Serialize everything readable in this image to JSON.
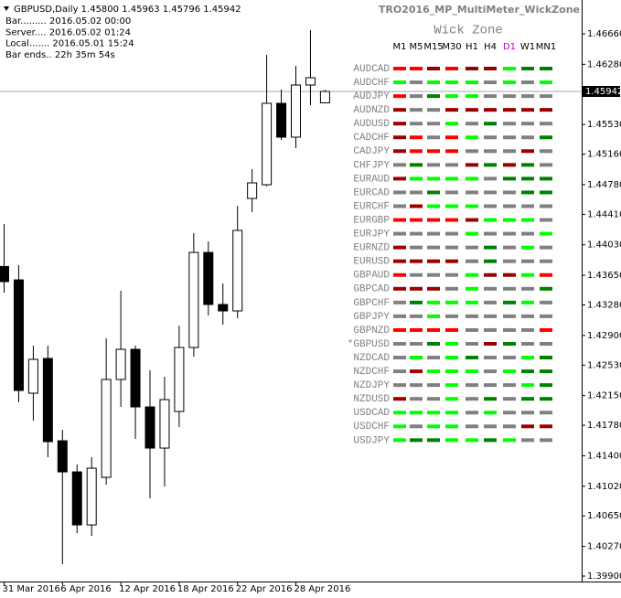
{
  "chart_data": {
    "type": "candlestick",
    "title": "GBPUSD,Daily  1.45800 1.45963 1.45796 1.45942",
    "categories": [
      "31 Mar 2016",
      null,
      null,
      null,
      "6 Apr 2016",
      null,
      null,
      null,
      "12 Apr 2016",
      null,
      null,
      null,
      "18 Apr 2016",
      null,
      null,
      null,
      "22 Apr 2016",
      null,
      null,
      null,
      "28 Apr 2016",
      null,
      null
    ],
    "open": [
      1.4376,
      1.43593,
      1.4218,
      1.42613,
      1.41587,
      1.41199,
      1.40538,
      1.41131,
      1.42351,
      1.42727,
      1.42009,
      1.41496,
      1.41952,
      1.4275,
      1.43935,
      1.43286,
      1.43206,
      1.44608,
      1.44779,
      1.45794,
      1.45372,
      1.46022,
      1.458
    ],
    "high": [
      1.44289,
      1.43776,
      1.42773,
      1.42773,
      1.41724,
      1.41291,
      1.41382,
      1.42864,
      1.43457,
      1.42773,
      1.42465,
      1.42385,
      1.43023,
      1.44175,
      1.44072,
      1.43548,
      1.44517,
      1.44973,
      1.46398,
      1.45965,
      1.46261,
      1.46706,
      1.45963
    ],
    "low": [
      1.43434,
      1.42066,
      1.41838,
      1.41382,
      1.40048,
      1.40436,
      1.40401,
      1.4104,
      1.42009,
      1.4161,
      1.40869,
      1.41017,
      1.41758,
      1.42636,
      1.43149,
      1.43035,
      1.43115,
      1.44437,
      1.4476,
      1.45338,
      1.45235,
      1.45771,
      1.45796
    ],
    "close": [
      1.43571,
      1.42214,
      1.42602,
      1.41576,
      1.41199,
      1.40538,
      1.41245,
      1.42351,
      1.42727,
      1.42009,
      1.41496,
      1.421,
      1.4275,
      1.43935,
      1.43286,
      1.43206,
      1.44209,
      1.44802,
      1.45794,
      1.45372,
      1.46022,
      1.46113,
      1.45942
    ],
    "up_color": "#ffffff",
    "down_color": "#000000",
    "ylim": [
      1.39832,
      1.47082
    ],
    "yticks": [
      {
        "value": 1.4666,
        "label": "1.46660"
      },
      {
        "value": 1.4628,
        "label": "1.46280"
      },
      {
        "value": 1.4553,
        "label": "1.45530"
      },
      {
        "value": 1.4516,
        "label": "1.45160"
      },
      {
        "value": 1.4478,
        "label": "1.44780"
      },
      {
        "value": 1.4441,
        "label": "1.44410"
      },
      {
        "value": 1.4403,
        "label": "1.44030"
      },
      {
        "value": 1.4365,
        "label": "1.43650"
      },
      {
        "value": 1.4328,
        "label": "1.43280"
      },
      {
        "value": 1.429,
        "label": "1.42900"
      },
      {
        "value": 1.4253,
        "label": "1.42530"
      },
      {
        "value": 1.4215,
        "label": "1.42150"
      },
      {
        "value": 1.4178,
        "label": "1.41780"
      },
      {
        "value": 1.414,
        "label": "1.41400"
      },
      {
        "value": 1.4102,
        "label": "1.41020"
      },
      {
        "value": 1.4065,
        "label": "1.40650"
      },
      {
        "value": 1.4027,
        "label": "1.40270"
      },
      {
        "value": 1.399,
        "label": "1.39900"
      }
    ],
    "current_price": 1.45942
  },
  "indicator": {
    "name": "TRO2016_MP_MultiMeter_WickZone",
    "info": [
      "Bar......... 2016.05.02 00:00",
      "Server.... 2016.05.02 01:24",
      "Local....... 2016.05.01 15:24",
      "Bar ends.. 22h 35m 54s"
    ],
    "panel_title": "Wick Zone",
    "timeframes": [
      "M1",
      "M5",
      "M15",
      "M30",
      "H1",
      "H4",
      "D1",
      "W1",
      "MN1"
    ],
    "timeframe_colors": [
      "#000000",
      "#000000",
      "#000000",
      "#000000",
      "#000000",
      "#000000",
      "#cc00cc",
      "#000000",
      "#000000"
    ],
    "pairs": [
      {
        "name": "AUDCAD",
        "cells": [
          "#ff0000",
          "#ff0000",
          "#990000",
          "#ff0000",
          "#990000",
          "#990000",
          "#00ff00",
          "#008000",
          "#008000"
        ]
      },
      {
        "name": "AUDCHF",
        "cells": [
          "#00ff00",
          "#808080",
          "#00ff00",
          "#00ff00",
          "#00ff00",
          "#808080",
          "#00ff00",
          "#808080",
          "#00ff00"
        ]
      },
      {
        "name": "AUDJPY",
        "cells": [
          "#ff0000",
          "#808080",
          "#008000",
          "#00ff00",
          "#00ff00",
          "#808080",
          "#808080",
          "#808080",
          "#808080"
        ]
      },
      {
        "name": "AUDNZD",
        "cells": [
          "#990000",
          "#808080",
          "#808080",
          "#990000",
          "#990000",
          "#990000",
          "#990000",
          "#990000",
          "#990000"
        ]
      },
      {
        "name": "AUDUSD",
        "cells": [
          "#990000",
          "#808080",
          "#808080",
          "#00ff00",
          "#808080",
          "#008000",
          "#808080",
          "#808080",
          "#808080"
        ]
      },
      {
        "name": "CADCHF",
        "cells": [
          "#990000",
          "#ff0000",
          "#808080",
          "#ff0000",
          "#00ff00",
          "#808080",
          "#808080",
          "#808080",
          "#008000"
        ]
      },
      {
        "name": "CADJPY",
        "cells": [
          "#990000",
          "#ff0000",
          "#ff0000",
          "#ff0000",
          "#808080",
          "#808080",
          "#808080",
          "#990000",
          "#808080"
        ]
      },
      {
        "name": "CHFJPY",
        "cells": [
          "#808080",
          "#008000",
          "#808080",
          "#808080",
          "#990000",
          "#008000",
          "#990000",
          "#008000",
          "#808080"
        ]
      },
      {
        "name": "EURAUD",
        "cells": [
          "#990000",
          "#00ff00",
          "#00ff00",
          "#00ff00",
          "#00ff00",
          "#808080",
          "#008000",
          "#008000",
          "#008000"
        ]
      },
      {
        "name": "EURCAD",
        "cells": [
          "#808080",
          "#808080",
          "#008000",
          "#808080",
          "#808080",
          "#808080",
          "#808080",
          "#008000",
          "#008000"
        ]
      },
      {
        "name": "EURCHF",
        "cells": [
          "#808080",
          "#990000",
          "#00ff00",
          "#00ff00",
          "#00ff00",
          "#808080",
          "#808080",
          "#808080",
          "#808080"
        ]
      },
      {
        "name": "EURGBP",
        "cells": [
          "#ff0000",
          "#ff0000",
          "#ff0000",
          "#ff0000",
          "#990000",
          "#00ff00",
          "#00ff00",
          "#00ff00",
          "#808080"
        ]
      },
      {
        "name": "EURJPY",
        "cells": [
          "#808080",
          "#808080",
          "#808080",
          "#808080",
          "#00ff00",
          "#808080",
          "#808080",
          "#808080",
          "#00ff00"
        ]
      },
      {
        "name": "EURNZD",
        "cells": [
          "#990000",
          "#808080",
          "#808080",
          "#808080",
          "#808080",
          "#008000",
          "#808080",
          "#00ff00",
          "#808080"
        ]
      },
      {
        "name": "EURUSD",
        "cells": [
          "#990000",
          "#990000",
          "#990000",
          "#990000",
          "#808080",
          "#008000",
          "#808080",
          "#808080",
          "#808080"
        ]
      },
      {
        "name": "GBPAUD",
        "cells": [
          "#ff0000",
          "#808080",
          "#808080",
          "#808080",
          "#00ff00",
          "#990000",
          "#990000",
          "#00ff00",
          "#ff0000"
        ]
      },
      {
        "name": "GBPCAD",
        "cells": [
          "#990000",
          "#990000",
          "#990000",
          "#808080",
          "#00ff00",
          "#808080",
          "#808080",
          "#808080",
          "#008000"
        ]
      },
      {
        "name": "GBPCHF",
        "cells": [
          "#808080",
          "#008000",
          "#00ff00",
          "#00ff00",
          "#00ff00",
          "#808080",
          "#008000",
          "#00ff00",
          "#808080"
        ]
      },
      {
        "name": "GBPJPY",
        "cells": [
          "#808080",
          "#808080",
          "#00ff00",
          "#808080",
          "#808080",
          "#808080",
          "#808080",
          "#808080",
          "#808080"
        ]
      },
      {
        "name": "GBPNZD",
        "cells": [
          "#ff0000",
          "#ff0000",
          "#ff0000",
          "#ff0000",
          "#808080",
          "#808080",
          "#808080",
          "#808080",
          "#ff0000"
        ]
      },
      {
        "name": "*GBPUSD",
        "cells": [
          "#808080",
          "#808080",
          "#008000",
          "#00ff00",
          "#808080",
          "#990000",
          "#008000",
          "#808080",
          "#808080"
        ]
      },
      {
        "name": "NZDCAD",
        "cells": [
          "#808080",
          "#00ff00",
          "#808080",
          "#00ff00",
          "#008000",
          "#808080",
          "#808080",
          "#00ff00",
          "#008000"
        ]
      },
      {
        "name": "NZDCHF",
        "cells": [
          "#808080",
          "#990000",
          "#00ff00",
          "#00ff00",
          "#00ff00",
          "#808080",
          "#00ff00",
          "#008000",
          "#008000"
        ]
      },
      {
        "name": "NZDJPY",
        "cells": [
          "#808080",
          "#808080",
          "#808080",
          "#00ff00",
          "#808080",
          "#808080",
          "#808080",
          "#00ff00",
          "#008000"
        ]
      },
      {
        "name": "NZDUSD",
        "cells": [
          "#990000",
          "#808080",
          "#808080",
          "#00ff00",
          "#808080",
          "#008000",
          "#808080",
          "#008000",
          "#008000"
        ]
      },
      {
        "name": "USDCAD",
        "cells": [
          "#00ff00",
          "#00ff00",
          "#00ff00",
          "#00ff00",
          "#808080",
          "#00ff00",
          "#808080",
          "#808080",
          "#808080"
        ]
      },
      {
        "name": "USDCHF",
        "cells": [
          "#00ff00",
          "#808080",
          "#00ff00",
          "#00ff00",
          "#808080",
          "#808080",
          "#808080",
          "#990000",
          "#990000"
        ]
      },
      {
        "name": "USDJPY",
        "cells": [
          "#00ff00",
          "#008000",
          "#008000",
          "#00ff00",
          "#00ff00",
          "#008000",
          "#00ff00",
          "#808080",
          "#808080"
        ]
      }
    ]
  }
}
